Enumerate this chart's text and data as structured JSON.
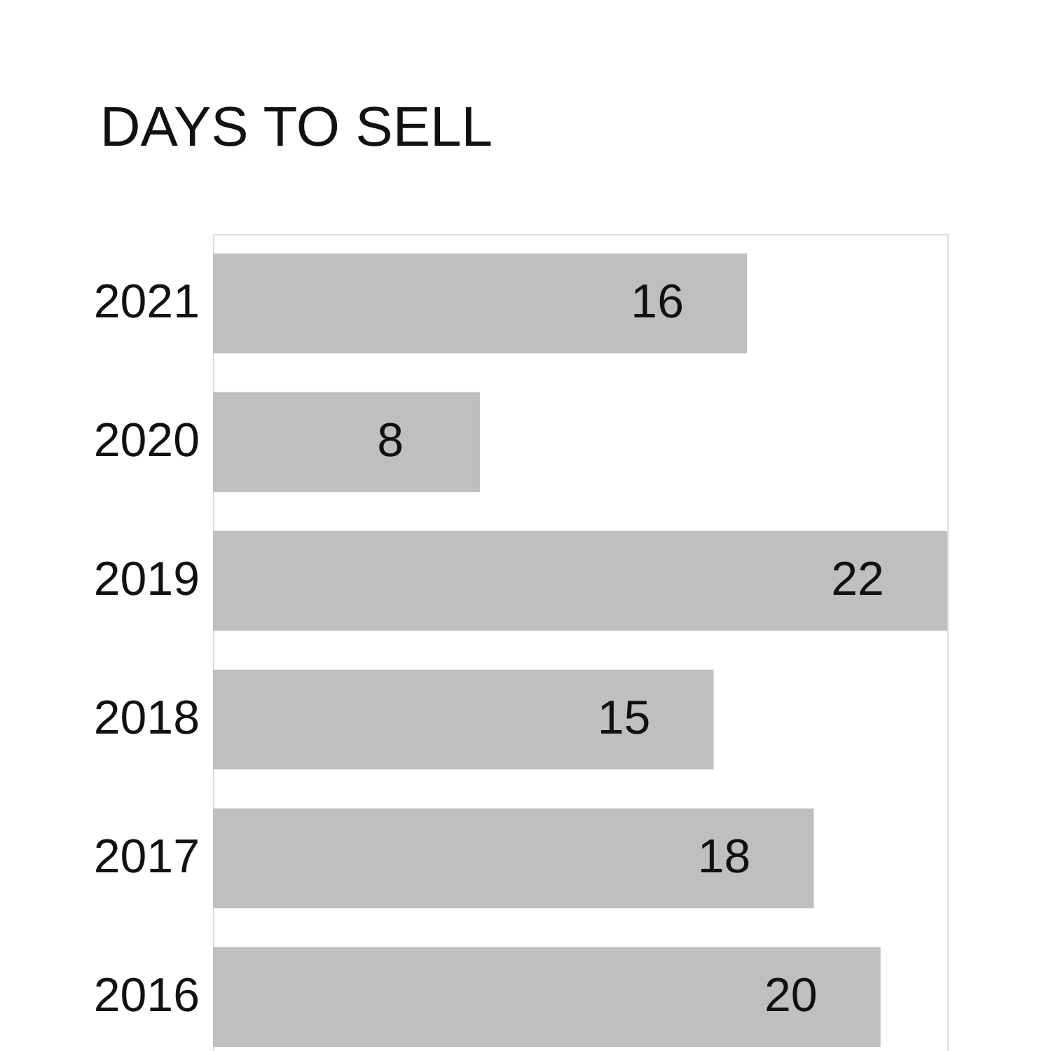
{
  "chart_data": {
    "type": "bar",
    "orientation": "horizontal",
    "title": "DAYS TO SELL",
    "categories": [
      "2021",
      "2020",
      "2019",
      "2018",
      "2017",
      "2016"
    ],
    "values": [
      16,
      8,
      22,
      15,
      18,
      20
    ],
    "color": "#bebfc1",
    "data_labels": true,
    "grid": false
  }
}
